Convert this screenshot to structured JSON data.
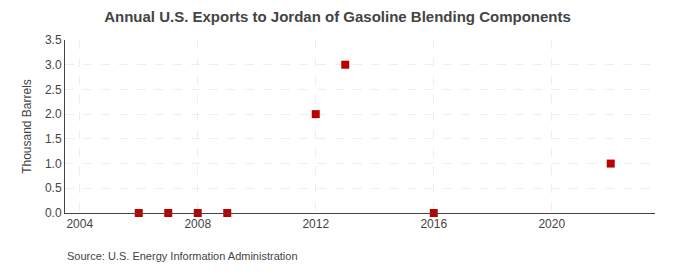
{
  "chart_data": {
    "type": "scatter",
    "title": "Annual U.S. Exports to Jordan of Gasoline Blending Components",
    "ylabel": "Thousand Barrels",
    "annotations": [
      "Source: U.S. Energy Information Administration"
    ],
    "x": [
      2006,
      2007,
      2008,
      2009,
      2012,
      2013,
      2016,
      2022
    ],
    "values": [
      0.0,
      0.0,
      0.0,
      0.0,
      2.0,
      3.0,
      0.0,
      1.0
    ],
    "color": "#bb0000",
    "marker": "square",
    "xlim": [
      2003.5,
      2023.5
    ],
    "xticks": [
      2004,
      2008,
      2012,
      2016,
      2020
    ],
    "ylim": [
      0.0,
      3.5
    ],
    "yticks": [
      {
        "value": 0.0,
        "label": "0.0"
      },
      0.5,
      {
        "value": 1.0,
        "label": "1.0"
      },
      1.5,
      {
        "value": 2.0,
        "label": "2.0"
      },
      2.5,
      {
        "value": 3.0,
        "label": "3.0"
      },
      3.5
    ],
    "grid": true
  }
}
